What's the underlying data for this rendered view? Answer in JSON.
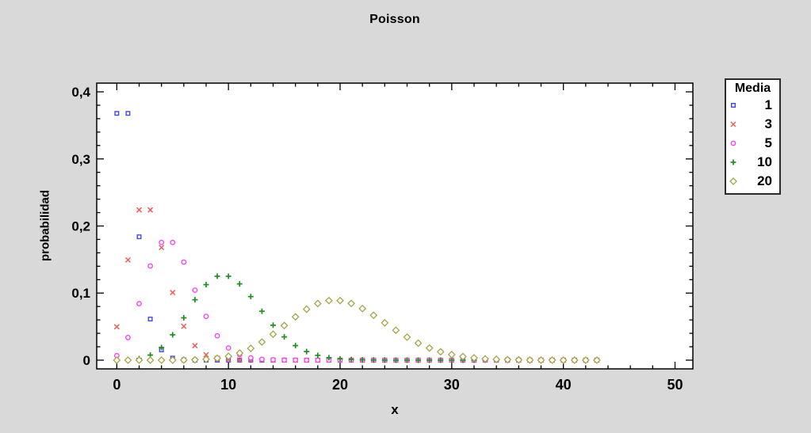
{
  "chart_data": {
    "type": "scatter",
    "title": "Poisson",
    "xlabel": "x",
    "ylabel": "probabilidad",
    "xlim": [
      -1.8,
      51.6
    ],
    "ylim": [
      -0.013,
      0.413
    ],
    "x_ticks": [
      0,
      10,
      20,
      30,
      40,
      50
    ],
    "x_tick_labels": [
      "0",
      "10",
      "20",
      "30",
      "40",
      "50"
    ],
    "x_minor_step": 2,
    "y_ticks": [
      0,
      0.1,
      0.2,
      0.3,
      0.4
    ],
    "y_tick_labels": [
      "0",
      "0,1",
      "0,2",
      "0,3",
      "0,4"
    ],
    "y_minor_step": 0.02,
    "grid": false,
    "legend": {
      "title": "Media",
      "position": "right-outside"
    },
    "x": [
      0,
      1,
      2,
      3,
      4,
      5,
      6,
      7,
      8,
      9,
      10,
      11,
      12,
      13,
      14,
      15,
      16,
      17,
      18,
      19,
      20,
      21,
      22,
      23,
      24,
      25,
      26,
      27,
      28,
      29,
      30,
      31,
      32,
      33,
      34,
      35,
      36,
      37,
      38,
      39,
      40,
      41,
      42,
      43
    ],
    "series": [
      {
        "name": "1",
        "marker": "square",
        "color": "#4646e8",
        "values": [
          0.3679,
          0.3679,
          0.1839,
          0.0613,
          0.0153,
          0.0031,
          0.0005,
          0.0001,
          0,
          0,
          0,
          0,
          0,
          0,
          0,
          0,
          0,
          0,
          0,
          0,
          0,
          0,
          0,
          0,
          0,
          0,
          0,
          0,
          0,
          0,
          0,
          0,
          0,
          0,
          0,
          0,
          0,
          0,
          0,
          0,
          0,
          0,
          0,
          0
        ]
      },
      {
        "name": "3",
        "marker": "x",
        "color": "#ee5d5d",
        "values": [
          0.0498,
          0.1494,
          0.224,
          0.224,
          0.168,
          0.1008,
          0.0504,
          0.0216,
          0.0081,
          0.0027,
          0.0008,
          0.0002,
          0.0001,
          0,
          0,
          0,
          0,
          0,
          0,
          0,
          0,
          0,
          0,
          0,
          0,
          0,
          0,
          0,
          0,
          0,
          0,
          0,
          0,
          0,
          0,
          0,
          0,
          0,
          0,
          0,
          0,
          0,
          0,
          0
        ]
      },
      {
        "name": "5",
        "marker": "circle",
        "color": "#fa41fa",
        "values": [
          0.0067,
          0.0337,
          0.0842,
          0.1404,
          0.1755,
          0.1755,
          0.1462,
          0.1044,
          0.0653,
          0.0363,
          0.0181,
          0.0082,
          0.0034,
          0.0013,
          0.0005,
          0.0002,
          0.0001,
          0,
          0,
          0,
          0,
          0,
          0,
          0,
          0,
          0,
          0,
          0,
          0,
          0,
          0,
          0,
          0,
          0,
          0,
          0,
          0,
          0,
          0,
          0,
          0,
          0,
          0,
          0
        ]
      },
      {
        "name": "10",
        "marker": "plus",
        "color": "#1f8f1f",
        "values": [
          0,
          0.0005,
          0.0023,
          0.0076,
          0.0189,
          0.0378,
          0.0631,
          0.0901,
          0.1126,
          0.1251,
          0.1251,
          0.1137,
          0.0948,
          0.0729,
          0.0521,
          0.0347,
          0.0217,
          0.0128,
          0.0071,
          0.0037,
          0.0019,
          0.0009,
          0.0004,
          0.0002,
          0.0001,
          0,
          0,
          0,
          0,
          0,
          0,
          0,
          0,
          0,
          0,
          0,
          0,
          0,
          0,
          0,
          0,
          0,
          0,
          0
        ]
      },
      {
        "name": "20",
        "marker": "diamond",
        "color": "#a5a54b",
        "values": [
          0,
          0,
          0,
          0,
          0,
          0.0001,
          0.0002,
          0.0005,
          0.0013,
          0.0029,
          0.0058,
          0.0106,
          0.0176,
          0.0271,
          0.0387,
          0.0516,
          0.0646,
          0.076,
          0.0844,
          0.0888,
          0.0888,
          0.0846,
          0.0769,
          0.0669,
          0.0557,
          0.0446,
          0.0343,
          0.0254,
          0.0181,
          0.0125,
          0.0083,
          0.0054,
          0.0034,
          0.002,
          0.0012,
          0.0007,
          0.0004,
          0.0002,
          0.0001,
          0.0001,
          0,
          0,
          0,
          0
        ]
      }
    ],
    "colors": {
      "background": "#d9d9d9",
      "plot_background": "#ffffff",
      "axis": "#000000"
    }
  }
}
